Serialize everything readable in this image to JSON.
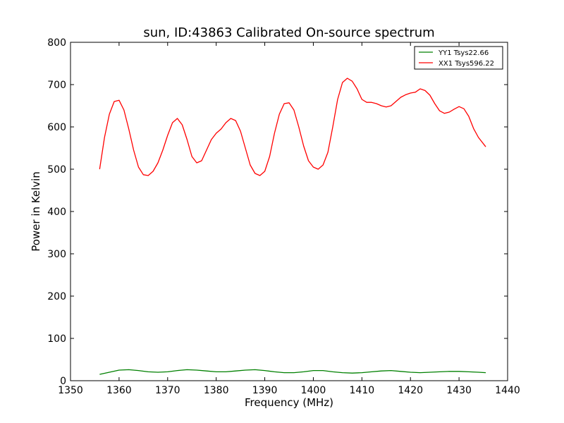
{
  "chart_data": {
    "type": "line",
    "title": "sun, ID:43863 Calibrated On-source spectrum",
    "xlabel": "Frequency (MHz)",
    "ylabel": "Power in Kelvin",
    "xlim": [
      1350,
      1440
    ],
    "ylim": [
      0,
      800
    ],
    "x_ticks": [
      "1350",
      "1360",
      "1370",
      "1380",
      "1390",
      "1400",
      "1410",
      "1420",
      "1430",
      "1440"
    ],
    "y_ticks": [
      "0",
      "100",
      "200",
      "300",
      "400",
      "500",
      "600",
      "700",
      "800"
    ],
    "grid": false,
    "legend_position": "top-right",
    "series": [
      {
        "name": "YY1 Tsys22.66",
        "color": "#008000",
        "x": [
          1356,
          1358,
          1360,
          1362,
          1364,
          1366,
          1368,
          1370,
          1372,
          1374,
          1376,
          1378,
          1380,
          1382,
          1384,
          1386,
          1388,
          1390,
          1392,
          1394,
          1396,
          1398,
          1400,
          1402,
          1404,
          1406,
          1408,
          1410,
          1412,
          1414,
          1416,
          1418,
          1420,
          1422,
          1424,
          1426,
          1428,
          1430,
          1432,
          1434,
          1435.5
        ],
        "y": [
          15,
          20,
          25,
          26,
          24,
          21,
          20,
          21,
          24,
          26,
          25,
          23,
          21,
          21,
          23,
          25,
          26,
          24,
          21,
          19,
          19,
          21,
          24,
          24,
          21,
          19,
          18,
          19,
          21,
          23,
          24,
          22,
          20,
          19,
          20,
          21,
          22,
          22,
          21,
          20,
          19
        ]
      },
      {
        "name": "XX1 Tsys596.22",
        "color": "#ff0000",
        "x": [
          1356,
          1357,
          1358,
          1359,
          1360,
          1361,
          1362,
          1363,
          1364,
          1365,
          1366,
          1367,
          1368,
          1369,
          1370,
          1371,
          1372,
          1373,
          1374,
          1375,
          1376,
          1377,
          1378,
          1379,
          1380,
          1381,
          1382,
          1383,
          1384,
          1385,
          1386,
          1387,
          1388,
          1389,
          1390,
          1391,
          1392,
          1393,
          1394,
          1395,
          1396,
          1397,
          1398,
          1399,
          1400,
          1401,
          1402,
          1403,
          1404,
          1405,
          1406,
          1407,
          1408,
          1409,
          1410,
          1411,
          1412,
          1413,
          1414,
          1415,
          1416,
          1417,
          1418,
          1419,
          1420,
          1420.5,
          1421,
          1422,
          1423,
          1424,
          1425,
          1426,
          1427,
          1428,
          1429,
          1430,
          1431,
          1432,
          1433,
          1434,
          1435.5
        ],
        "y": [
          500,
          575,
          630,
          660,
          663,
          640,
          595,
          545,
          505,
          487,
          485,
          495,
          515,
          545,
          580,
          610,
          620,
          605,
          570,
          530,
          515,
          520,
          545,
          570,
          585,
          595,
          610,
          620,
          615,
          590,
          550,
          510,
          490,
          485,
          495,
          530,
          585,
          630,
          655,
          657,
          640,
          600,
          555,
          520,
          505,
          500,
          510,
          540,
          600,
          665,
          705,
          715,
          708,
          690,
          665,
          658,
          658,
          655,
          650,
          647,
          650,
          660,
          670,
          676,
          680,
          681,
          682,
          690,
          686,
          675,
          655,
          638,
          632,
          635,
          642,
          648,
          643,
          625,
          596,
          575,
          553
        ]
      }
    ]
  }
}
